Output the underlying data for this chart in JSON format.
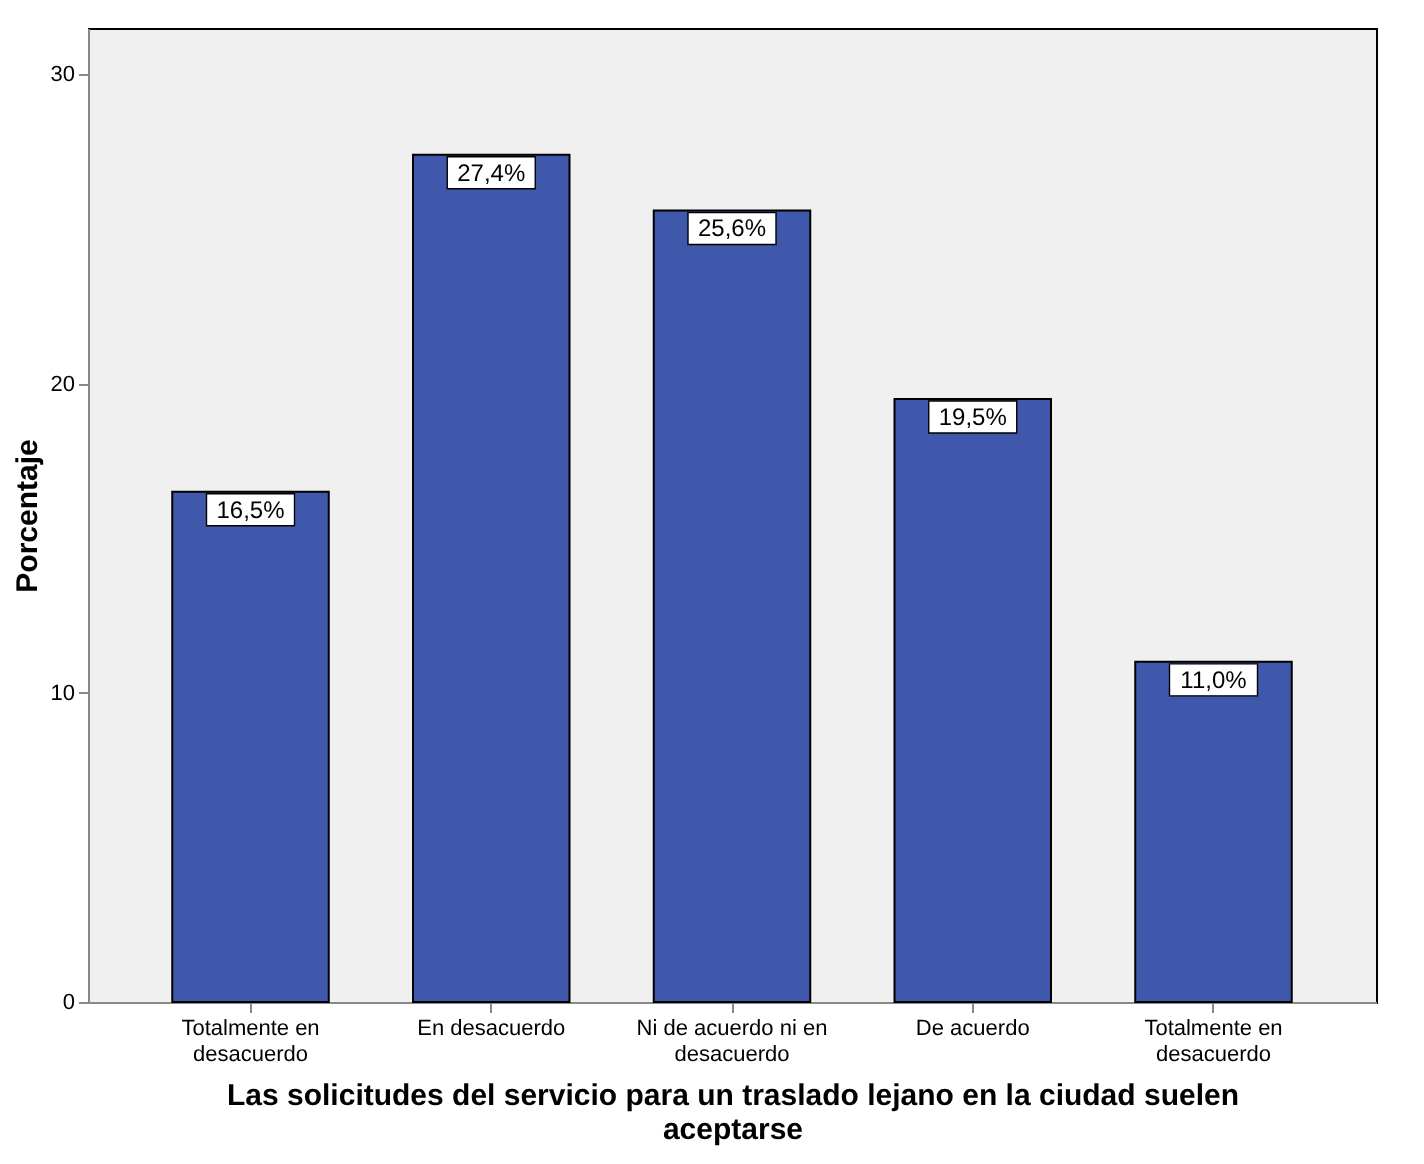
{
  "chart_data": {
    "type": "bar",
    "xlabel": "Las solicitudes del servicio para un traslado lejano en la ciudad suelen aceptarse",
    "ylabel": "Porcentaje",
    "categories": [
      "Totalmente en desacuerdo",
      "En desacuerdo",
      "Ni de acuerdo ni en desacuerdo",
      "De acuerdo",
      "Totalmente en desacuerdo"
    ],
    "values": [
      16.5,
      27.4,
      25.6,
      19.5,
      11.0
    ],
    "value_labels": [
      "16,5%",
      "27,4%",
      "25,6%",
      "19,5%",
      "11,0%"
    ],
    "color": "#3f58ab",
    "ylim": [
      0,
      31.5
    ],
    "yticks": [
      0,
      10,
      20,
      30
    ],
    "grid": false
  }
}
